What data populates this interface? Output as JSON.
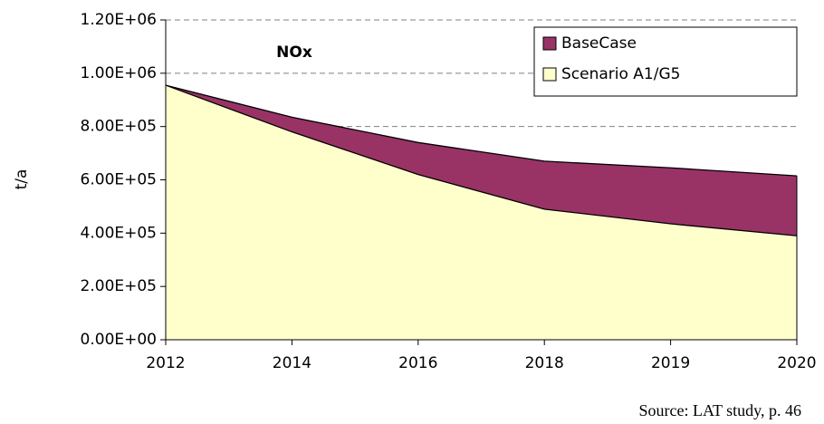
{
  "chart_data": {
    "type": "area",
    "title": "NOx",
    "y_label": "t/a",
    "source": "Source: LAT study, p. 46",
    "categories": [
      "2012",
      "2014",
      "2016",
      "2018",
      "2019",
      "2020"
    ],
    "series": [
      {
        "name": "BaseCase",
        "color": "#993366",
        "values": [
          955000,
          835000,
          740000,
          670000,
          645000,
          615000
        ]
      },
      {
        "name": "Scenario A1/G5",
        "color": "#ffffcc",
        "values": [
          955000,
          780000,
          620000,
          490000,
          435000,
          390000
        ]
      }
    ],
    "ylim": [
      0,
      1200000
    ],
    "yticks": [
      {
        "value": 0,
        "label": "0.00E+00"
      },
      {
        "value": 200000,
        "label": "2.00E+05"
      },
      {
        "value": 400000,
        "label": "4.00E+05"
      },
      {
        "value": 600000,
        "label": "6.00E+05"
      },
      {
        "value": 800000,
        "label": "8.00E+05"
      },
      {
        "value": 1000000,
        "label": "1.00E+06"
      },
      {
        "value": 1200000,
        "label": "1.20E+06"
      }
    ],
    "grid": true,
    "legend": "upper right"
  }
}
